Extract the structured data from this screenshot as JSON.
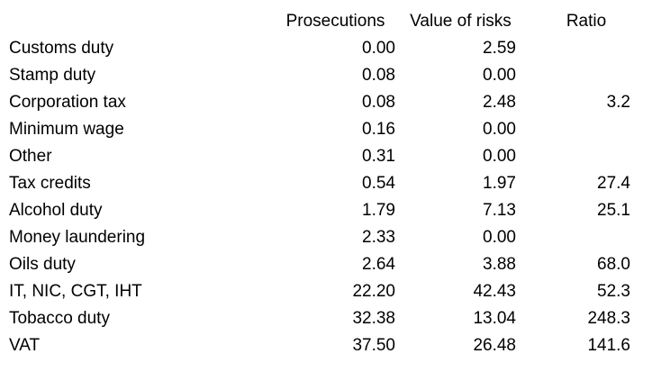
{
  "chart_data": {
    "type": "table",
    "columns": [
      "",
      "Prosecutions",
      "Value of risks",
      "Ratio"
    ],
    "rows": [
      {
        "label": "Customs duty",
        "prosecutions": "0.00",
        "value_of_risks": "2.59",
        "ratio": ""
      },
      {
        "label": "Stamp duty",
        "prosecutions": "0.08",
        "value_of_risks": "0.00",
        "ratio": ""
      },
      {
        "label": "Corporation tax",
        "prosecutions": "0.08",
        "value_of_risks": "2.48",
        "ratio": "3.2"
      },
      {
        "label": "Minimum wage",
        "prosecutions": "0.16",
        "value_of_risks": "0.00",
        "ratio": ""
      },
      {
        "label": "Other",
        "prosecutions": "0.31",
        "value_of_risks": "0.00",
        "ratio": ""
      },
      {
        "label": "Tax credits",
        "prosecutions": "0.54",
        "value_of_risks": "1.97",
        "ratio": "27.4"
      },
      {
        "label": "Alcohol duty",
        "prosecutions": "1.79",
        "value_of_risks": "7.13",
        "ratio": "25.1"
      },
      {
        "label": "Money laundering",
        "prosecutions": "2.33",
        "value_of_risks": "0.00",
        "ratio": ""
      },
      {
        "label": "Oils duty",
        "prosecutions": "2.64",
        "value_of_risks": "3.88",
        "ratio": "68.0"
      },
      {
        "label": "IT, NIC, CGT, IHT",
        "prosecutions": "22.20",
        "value_of_risks": "42.43",
        "ratio": "52.3"
      },
      {
        "label": "Tobacco duty",
        "prosecutions": "32.38",
        "value_of_risks": "13.04",
        "ratio": "248.3"
      },
      {
        "label": "VAT",
        "prosecutions": "37.50",
        "value_of_risks": "26.48",
        "ratio": "141.6"
      }
    ],
    "layout": {
      "grid": false,
      "text_color": "#000000",
      "background_color": "#ffffff",
      "number_alignment": "right",
      "header_alignment": "center"
    }
  }
}
